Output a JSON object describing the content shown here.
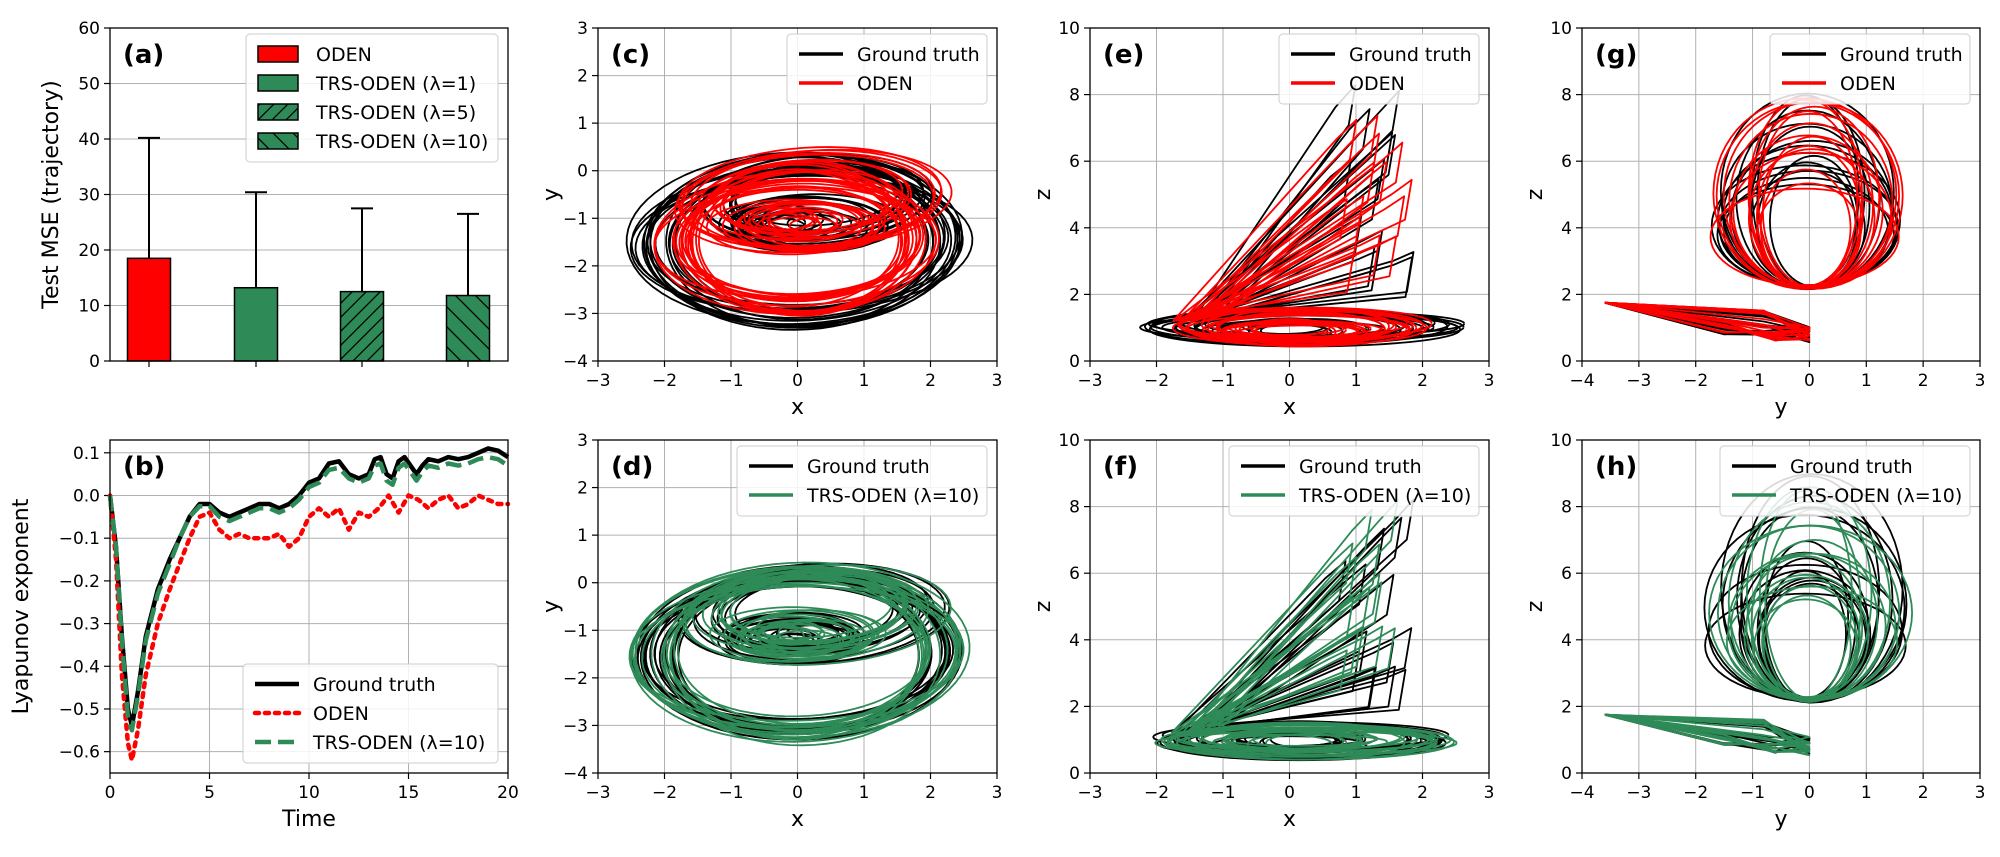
{
  "colors": {
    "oden": "#ff0000",
    "trs": "#2e8b57",
    "truth": "#000000",
    "grid": "#b0b0b0"
  },
  "chart_data": [
    {
      "id": "a",
      "type": "bar",
      "panel_label": "(a)",
      "ylabel": "Test MSE (trajectory)",
      "ylim": [
        0,
        60
      ],
      "yticks": [
        "0",
        "10",
        "20",
        "30",
        "40",
        "50",
        "60"
      ],
      "series": [
        {
          "name": "ODEN",
          "value": 18.5,
          "error": 21.7,
          "hatch": "none"
        },
        {
          "name": "TRS-ODEN (λ=1)",
          "value": 13.2,
          "error": 17.2,
          "hatch": "none"
        },
        {
          "name": "TRS-ODEN (λ=5)",
          "value": 12.5,
          "error": 15.0,
          "hatch": "forward"
        },
        {
          "name": "TRS-ODEN (λ=10)",
          "value": 11.8,
          "error": 14.7,
          "hatch": "back"
        }
      ],
      "legend_location": "top-right"
    },
    {
      "id": "b",
      "type": "line",
      "panel_label": "(b)",
      "xlabel": "Time",
      "ylabel": "Lyapunov exponent",
      "xlim": [
        0,
        20
      ],
      "ylim": [
        -0.65,
        0.13
      ],
      "xticks": [
        "0",
        "5",
        "10",
        "15",
        "20"
      ],
      "yticks": [
        "−0.6",
        "−0.5",
        "−0.4",
        "−0.3",
        "−0.2",
        "−0.1",
        "0.0",
        "0.1"
      ],
      "series": [
        {
          "name": "Ground truth",
          "style": "solid",
          "x": [
            0,
            0.3,
            0.6,
            0.9,
            1.1,
            1.4,
            1.8,
            2.4,
            3.0,
            3.5,
            4.0,
            4.5,
            5.0,
            5.5,
            6.0,
            6.5,
            7.0,
            7.5,
            8.0,
            8.5,
            9.0,
            9.5,
            10.0,
            10.5,
            11.0,
            11.5,
            12.0,
            12.5,
            13.0,
            13.3,
            13.6,
            13.9,
            14.2,
            14.5,
            14.8,
            15.1,
            15.4,
            15.7,
            16.0,
            16.5,
            17.0,
            17.5,
            18.0,
            18.5,
            19.0,
            19.5,
            20.0
          ],
          "y": [
            0,
            -0.12,
            -0.33,
            -0.5,
            -0.54,
            -0.46,
            -0.33,
            -0.22,
            -0.15,
            -0.1,
            -0.05,
            -0.02,
            -0.02,
            -0.04,
            -0.05,
            -0.04,
            -0.03,
            -0.02,
            -0.02,
            -0.03,
            -0.02,
            0.0,
            0.03,
            0.04,
            0.075,
            0.08,
            0.05,
            0.04,
            0.05,
            0.085,
            0.09,
            0.05,
            0.04,
            0.08,
            0.09,
            0.07,
            0.05,
            0.07,
            0.085,
            0.08,
            0.09,
            0.085,
            0.09,
            0.1,
            0.11,
            0.105,
            0.09
          ]
        },
        {
          "name": "ODEN",
          "style": "dotted",
          "x": [
            0,
            0.3,
            0.6,
            0.9,
            1.1,
            1.4,
            1.8,
            2.4,
            3.0,
            3.5,
            4.0,
            4.5,
            5.0,
            5.5,
            6.0,
            6.5,
            7.0,
            7.5,
            8.0,
            8.5,
            9.0,
            9.5,
            10.0,
            10.5,
            11.0,
            11.5,
            12.0,
            12.5,
            13.0,
            13.5,
            14.0,
            14.5,
            15.0,
            15.5,
            16.0,
            16.5,
            17.0,
            17.5,
            18.0,
            18.5,
            19.0,
            19.5,
            20.0
          ],
          "y": [
            0,
            -0.15,
            -0.42,
            -0.58,
            -0.62,
            -0.55,
            -0.42,
            -0.3,
            -0.22,
            -0.16,
            -0.1,
            -0.05,
            -0.04,
            -0.08,
            -0.1,
            -0.09,
            -0.1,
            -0.1,
            -0.1,
            -0.09,
            -0.12,
            -0.1,
            -0.05,
            -0.03,
            -0.05,
            -0.03,
            -0.08,
            -0.04,
            -0.05,
            -0.03,
            0.0,
            -0.04,
            0.0,
            -0.01,
            -0.03,
            -0.01,
            0.0,
            -0.03,
            -0.02,
            0.0,
            -0.01,
            -0.02,
            -0.02
          ]
        },
        {
          "name": "TRS-ODEN (λ=10)",
          "style": "dashed",
          "x": [
            0,
            0.3,
            0.6,
            0.9,
            1.1,
            1.4,
            1.8,
            2.4,
            3.0,
            3.5,
            4.0,
            4.5,
            5.0,
            5.5,
            6.0,
            6.5,
            7.0,
            7.5,
            8.0,
            8.5,
            9.0,
            9.5,
            10.0,
            10.5,
            11.0,
            11.5,
            12.0,
            12.5,
            13.0,
            13.3,
            13.6,
            13.9,
            14.2,
            14.5,
            14.8,
            15.1,
            15.4,
            15.7,
            16.0,
            16.5,
            17.0,
            17.5,
            18.0,
            18.5,
            19.0,
            19.5,
            20.0
          ],
          "y": [
            0,
            -0.12,
            -0.34,
            -0.52,
            -0.55,
            -0.47,
            -0.34,
            -0.23,
            -0.16,
            -0.1,
            -0.05,
            -0.025,
            -0.025,
            -0.05,
            -0.06,
            -0.05,
            -0.04,
            -0.03,
            -0.03,
            -0.04,
            -0.03,
            -0.01,
            0.02,
            0.03,
            0.06,
            0.065,
            0.04,
            0.03,
            0.04,
            0.07,
            0.075,
            0.035,
            0.025,
            0.065,
            0.075,
            0.055,
            0.035,
            0.055,
            0.07,
            0.065,
            0.075,
            0.07,
            0.075,
            0.085,
            0.09,
            0.085,
            0.07
          ]
        }
      ],
      "legend_location": "bottom-right"
    },
    {
      "id": "c",
      "type": "line",
      "panel_label": "(c)",
      "xlabel": "x",
      "ylabel": "y",
      "xlim": [
        -3,
        3
      ],
      "ylim": [
        -4,
        3
      ],
      "xticks": [
        "−3",
        "−2",
        "−1",
        "0",
        "1",
        "2",
        "3"
      ],
      "yticks": [
        "−4",
        "−3",
        "−2",
        "−1",
        "0",
        "1",
        "2",
        "3"
      ],
      "legend": [
        "Ground truth",
        "ODEN"
      ],
      "legend_location": "top-right"
    },
    {
      "id": "d",
      "type": "line",
      "panel_label": "(d)",
      "xlabel": "x",
      "ylabel": "y",
      "xlim": [
        -3,
        3
      ],
      "ylim": [
        -4,
        3
      ],
      "xticks": [
        "−3",
        "−2",
        "−1",
        "0",
        "1",
        "2",
        "3"
      ],
      "yticks": [
        "−4",
        "−3",
        "−2",
        "−1",
        "0",
        "1",
        "2",
        "3"
      ],
      "legend": [
        "Ground truth",
        "TRS-ODEN (λ=10)"
      ],
      "legend_location": "top-right"
    },
    {
      "id": "e",
      "type": "line",
      "panel_label": "(e)",
      "xlabel": "x",
      "ylabel": "z",
      "xlim": [
        -3,
        3
      ],
      "ylim": [
        0,
        10
      ],
      "xticks": [
        "−3",
        "−2",
        "−1",
        "0",
        "1",
        "2",
        "3"
      ],
      "yticks": [
        "0",
        "2",
        "4",
        "6",
        "8",
        "10"
      ],
      "legend": [
        "Ground truth",
        "ODEN"
      ],
      "legend_location": "top-right"
    },
    {
      "id": "f",
      "type": "line",
      "panel_label": "(f)",
      "xlabel": "x",
      "ylabel": "z",
      "xlim": [
        -3,
        3
      ],
      "ylim": [
        0,
        10
      ],
      "xticks": [
        "−3",
        "−2",
        "−1",
        "0",
        "1",
        "2",
        "3"
      ],
      "yticks": [
        "0",
        "2",
        "4",
        "6",
        "8",
        "10"
      ],
      "legend": [
        "Ground truth",
        "TRS-ODEN (λ=10)"
      ],
      "legend_location": "top-right"
    },
    {
      "id": "g",
      "type": "line",
      "panel_label": "(g)",
      "xlabel": "y",
      "ylabel": "z",
      "xlim": [
        -4,
        3
      ],
      "ylim": [
        0,
        10
      ],
      "xticks": [
        "−4",
        "−3",
        "−2",
        "−1",
        "0",
        "1",
        "2",
        "3"
      ],
      "yticks": [
        "0",
        "2",
        "4",
        "6",
        "8",
        "10"
      ],
      "legend": [
        "Ground truth",
        "ODEN"
      ],
      "legend_location": "top-right"
    },
    {
      "id": "h",
      "type": "line",
      "panel_label": "(h)",
      "xlabel": "y",
      "ylabel": "z",
      "xlim": [
        -4,
        3
      ],
      "ylim": [
        0,
        10
      ],
      "xticks": [
        "−4",
        "−3",
        "−2",
        "−1",
        "0",
        "1",
        "2",
        "3"
      ],
      "yticks": [
        "0",
        "2",
        "4",
        "6",
        "8",
        "10"
      ],
      "legend": [
        "Ground truth",
        "TRS-ODEN (λ=10)"
      ],
      "legend_location": "top-right"
    }
  ]
}
